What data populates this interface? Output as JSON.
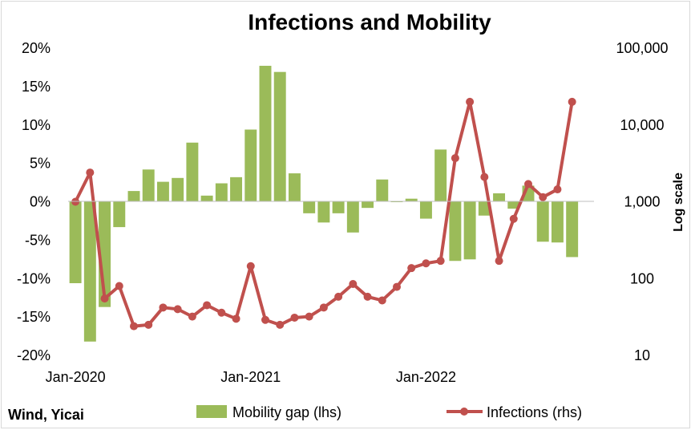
{
  "chart_data": {
    "type": "bar+line",
    "title": "Infections and Mobility",
    "x_dates": [
      "2020-01",
      "2020-02",
      "2020-03",
      "2020-04",
      "2020-05",
      "2020-06",
      "2020-07",
      "2020-08",
      "2020-09",
      "2020-10",
      "2020-11",
      "2020-12",
      "2021-01",
      "2021-02",
      "2021-03",
      "2021-04",
      "2021-05",
      "2021-06",
      "2021-07",
      "2021-08",
      "2021-09",
      "2021-10",
      "2021-11",
      "2021-12",
      "2022-01",
      "2022-02",
      "2022-03",
      "2022-04",
      "2022-05",
      "2022-06",
      "2022-07",
      "2022-08",
      "2022-09",
      "2022-10",
      "2022-11",
      "2022-12"
    ],
    "x_tick_labels": [
      "Jan-2020",
      "Jan-2021",
      "Jan-2022"
    ],
    "series": [
      {
        "name": "Mobility gap (lhs)",
        "axis": "left",
        "kind": "bar",
        "color": "#9bbb59",
        "values": [
          -10.6,
          -18.2,
          -13.7,
          -3.3,
          1.4,
          4.2,
          2.6,
          3.1,
          7.7,
          0.8,
          2.4,
          3.2,
          9.4,
          17.7,
          16.9,
          3.7,
          -1.5,
          -2.7,
          -1.5,
          -4.0,
          -0.8,
          2.9,
          0.0,
          0.4,
          -2.2,
          6.8,
          -7.7,
          -7.5,
          -1.8,
          1.1,
          -0.9,
          2.1,
          -5.2,
          -5.3,
          -7.2,
          null
        ]
      },
      {
        "name": "Infections (rhs)",
        "axis": "right",
        "kind": "line",
        "color": "#c0504d",
        "values": [
          1000,
          2400,
          55,
          80,
          24,
          25,
          42,
          40,
          32,
          45,
          36,
          30,
          145,
          29,
          25,
          31,
          32,
          42,
          58,
          85,
          58,
          52,
          78,
          137,
          158,
          170,
          3700,
          20000,
          2100,
          170,
          600,
          1700,
          1150,
          1450,
          20000,
          null
        ]
      }
    ],
    "left_axis": {
      "ylim": [
        -20,
        20
      ],
      "ticks": [
        "-20%",
        "-15%",
        "-10%",
        "-5%",
        "0%",
        "5%",
        "10%",
        "15%",
        "20%"
      ]
    },
    "right_axis": {
      "scale": "log",
      "ylim": [
        10,
        100000
      ],
      "ticks": [
        "10",
        "100",
        "1,000",
        "10,000",
        "100,000"
      ],
      "label": "Log scale"
    },
    "grid": false,
    "legend": "bottom",
    "source": "Wind, Yicai"
  }
}
